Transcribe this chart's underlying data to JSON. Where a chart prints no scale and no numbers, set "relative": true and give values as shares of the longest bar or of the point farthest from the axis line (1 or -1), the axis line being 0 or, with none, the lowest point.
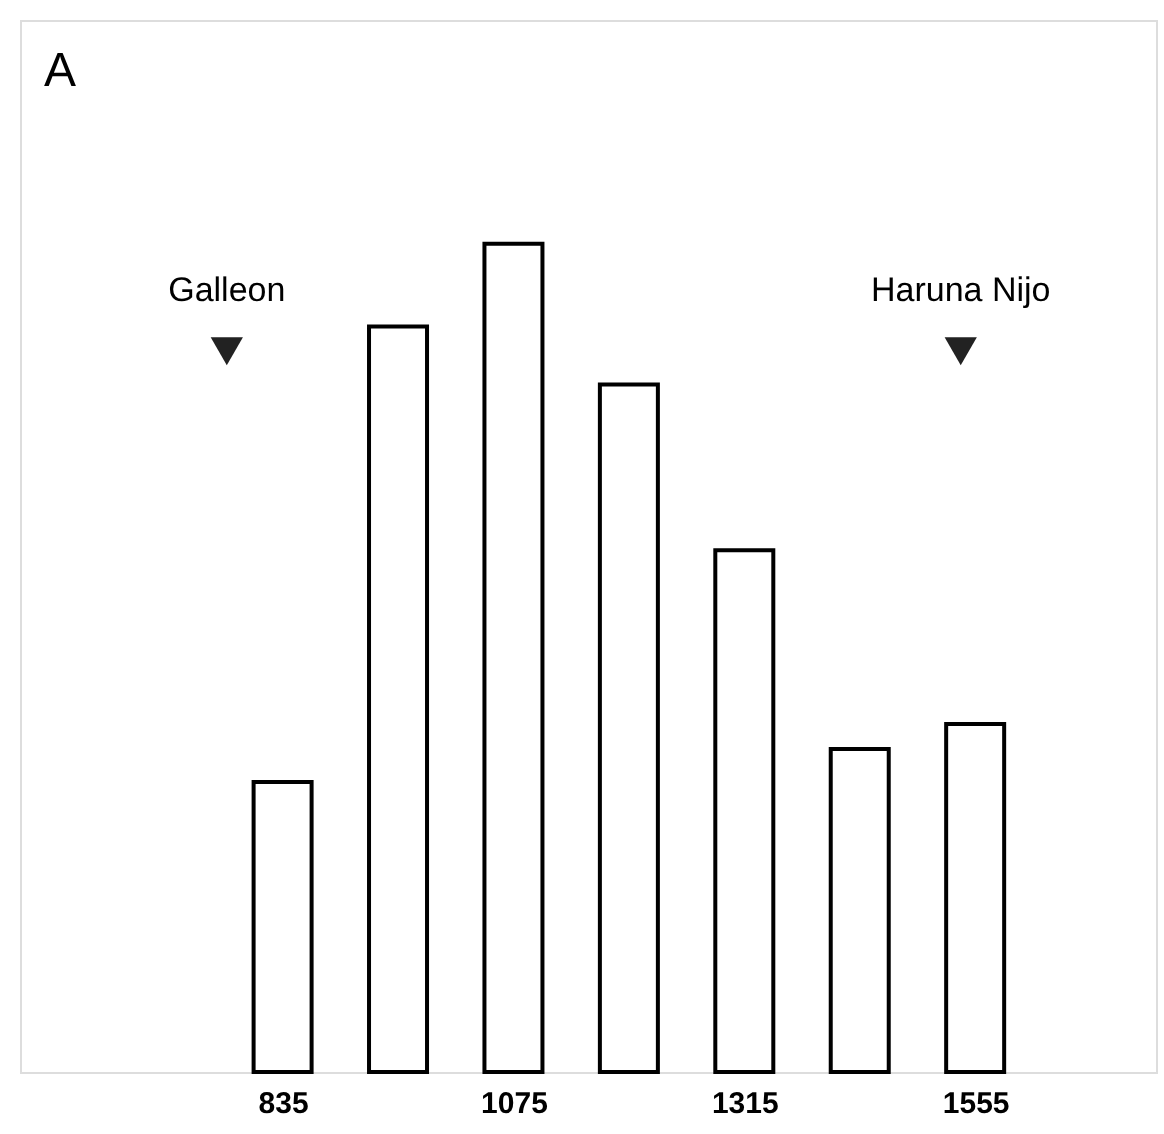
{
  "chart_data": {
    "type": "bar",
    "title": "A",
    "relative": true,
    "x": [
      835,
      955,
      1075,
      1195,
      1315,
      1435,
      1555
    ],
    "series": [
      {
        "values": [
          0.35,
          0.9,
          1.0,
          0.83,
          0.63,
          0.39,
          0.42
        ],
        "color": "#ffffff"
      },
      {
        "type": "scatter",
        "x": [
          777,
          1540
        ],
        "values": [
          0.87,
          0.87
        ],
        "color": "#222222",
        "marker": "triangle"
      }
    ],
    "xlim": [
      562,
      1743
    ],
    "xticks": [
      835,
      {
        "value": 1075,
        "label": "1075"
      },
      {
        "value": 1315,
        "label": "1315"
      },
      {
        "value": 1555,
        "label": "1555"
      }
    ],
    "annotations": [
      {
        "text": "Galleon",
        "x": 777,
        "y": 0.87
      },
      {
        "text": "Haruna Nijo",
        "x": 1540,
        "y": 0.87
      }
    ],
    "grid": false
  }
}
